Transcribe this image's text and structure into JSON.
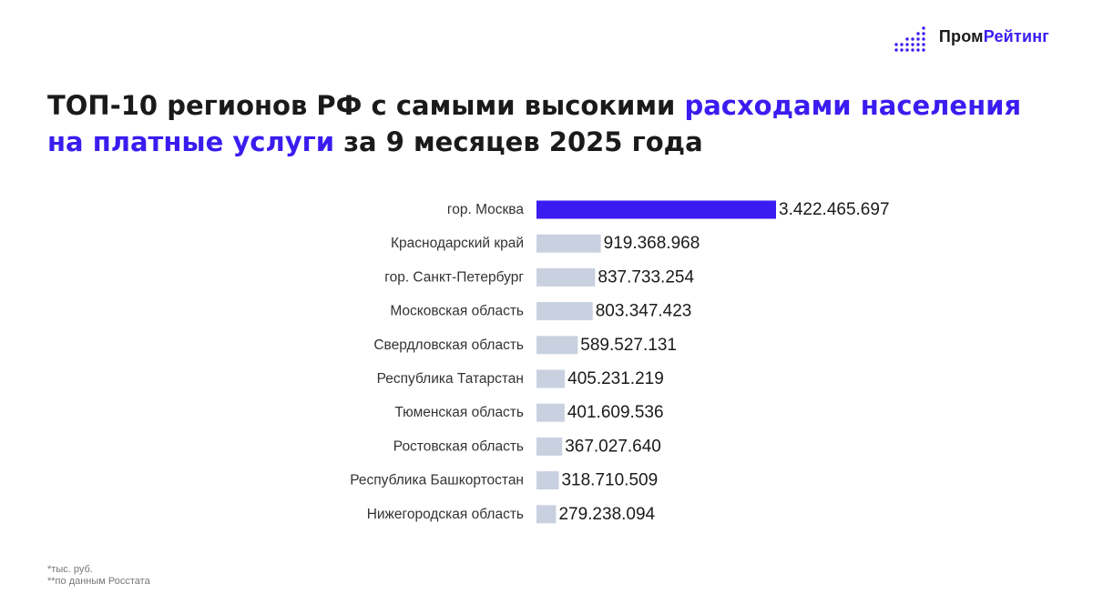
{
  "brand": {
    "part1": "Пром",
    "part2": "Рейтинг",
    "icon": "bar-dots-logo-icon"
  },
  "title": {
    "part1": "ТОП-10 регионов РФ с самыми высокими ",
    "highlight": "расходами населения на платные услуги",
    "part2": " за 9 месяцев 2025 года"
  },
  "colors": {
    "accent": "#3b1cf0",
    "bar_default": "#c9d1e0",
    "bar_highlight": "#3b1cf0"
  },
  "chart_data": {
    "type": "bar",
    "orientation": "horizontal",
    "categories": [
      "гор. Москва",
      "Краснодарский край",
      "гор. Санкт-Петербург",
      "Московская область",
      "Свердловская область",
      "Республика Татарстан",
      "Тюменская область",
      "Ростовская область",
      "Республика Башкортостан",
      "Нижегородская область"
    ],
    "values": [
      3422465697,
      919368968,
      837733254,
      803347423,
      589527131,
      405231219,
      401609536,
      367027640,
      318710509,
      279238094
    ],
    "value_labels": [
      "3.422.465.697",
      "919.368.968",
      "837.733.254",
      "803.347.423",
      "589.527.131",
      "405.231.219",
      "401.609.536",
      "367.027.640",
      "318.710.509",
      "279.238.094"
    ],
    "highlight_index": 0,
    "title": "ТОП-10 регионов РФ с самыми высокими расходами населения на платные услуги за 9 месяцев 2025 года",
    "xlabel": "",
    "ylabel": "",
    "grid": false,
    "legend": "none"
  },
  "notes": {
    "unit": "*тыс. руб.",
    "source": "**по данным Росстата"
  }
}
